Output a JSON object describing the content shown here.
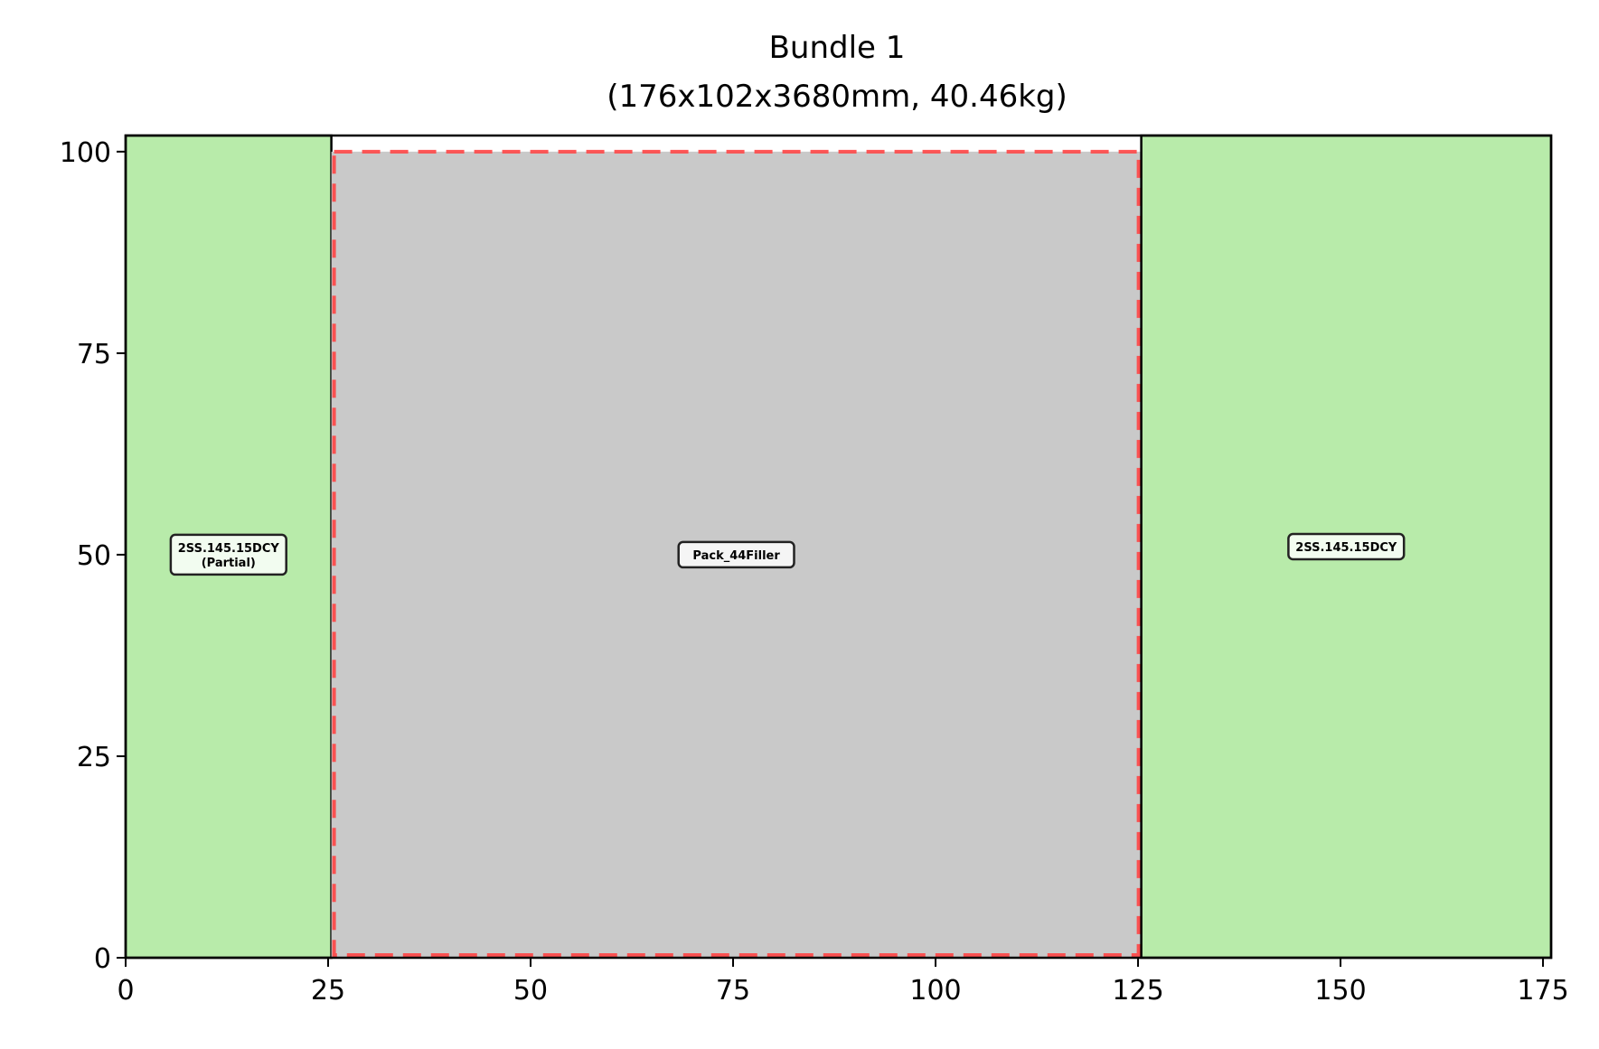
{
  "chart_data": {
    "type": "bar",
    "title": "Bundle 1",
    "subtitle": "(176x102x3680mm, 40.46kg)",
    "xlim": [
      0,
      176
    ],
    "ylim": [
      0,
      102
    ],
    "xticks": [
      0,
      25,
      50,
      75,
      100,
      125,
      150,
      175
    ],
    "yticks": [
      0,
      25,
      50,
      75,
      100
    ],
    "grid": false,
    "legend": "none",
    "rectangles": [
      {
        "name": "2SS.145.15DCY (Partial)",
        "label_lines": [
          "2SS.145.15DCY",
          "(Partial)"
        ],
        "x_start": 0,
        "x_end": 25.4,
        "y_start": 0,
        "y_end": 102,
        "fill": "#b8ebaa",
        "edge": "#000000",
        "dashed": false,
        "label_x": 12.7,
        "label_y": 50
      },
      {
        "name": "Pack_44Filler",
        "label_lines": [
          "Pack_44Filler"
        ],
        "x_start": 25.4,
        "x_end": 125.4,
        "y_start": 0,
        "y_end": 100,
        "fill": "#c9c9c9",
        "edge": "#ff4444",
        "dashed": true,
        "label_x": 75.4,
        "label_y": 50
      },
      {
        "name": "2SS.145.15DCY",
        "label_lines": [
          "2SS.145.15DCY"
        ],
        "x_start": 125.4,
        "x_end": 176,
        "y_start": 0,
        "y_end": 102,
        "fill": "#b8ebaa",
        "edge": "#000000",
        "dashed": false,
        "label_x": 150.7,
        "label_y": 51
      }
    ]
  }
}
